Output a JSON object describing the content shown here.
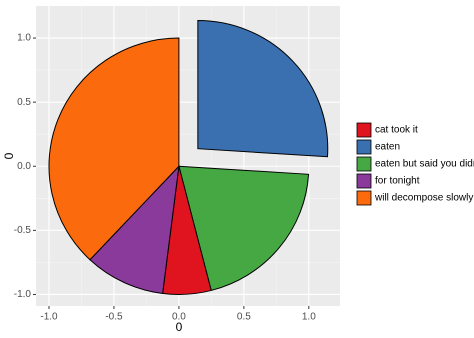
{
  "chart_data": {
    "type": "pie",
    "categories": [
      "eaten",
      "eaten but said you didn't",
      "cat took it",
      "for tonight",
      "will decompose slowly"
    ],
    "values": [
      26,
      20,
      6,
      10,
      38
    ],
    "colors": [
      "#3a6fb0",
      "#46a843",
      "#e0141e",
      "#8a3a9a",
      "#fc6a0e"
    ],
    "exploded": "eaten",
    "x_label": "0",
    "y_label": "0",
    "xlim": [
      -1.1,
      1.24
    ],
    "ylim": [
      -1.09,
      1.25
    ],
    "xticks": [
      {
        "value": -1,
        "label": "-1.0"
      },
      {
        "value": -0.5,
        "label": "-0.5"
      },
      {
        "value": 0,
        "label": "0.0"
      },
      {
        "value": 0.5,
        "label": "0.5"
      },
      {
        "value": 1,
        "label": "1.0"
      }
    ],
    "yticks": [
      {
        "value": -1,
        "label": "-1.0"
      },
      {
        "value": -0.5,
        "label": "-0.5"
      },
      {
        "value": 0,
        "label": "0.0"
      },
      {
        "value": 0.5,
        "label": "0.5"
      },
      {
        "value": 1,
        "label": "1.0"
      }
    ],
    "grid": true
  }
}
